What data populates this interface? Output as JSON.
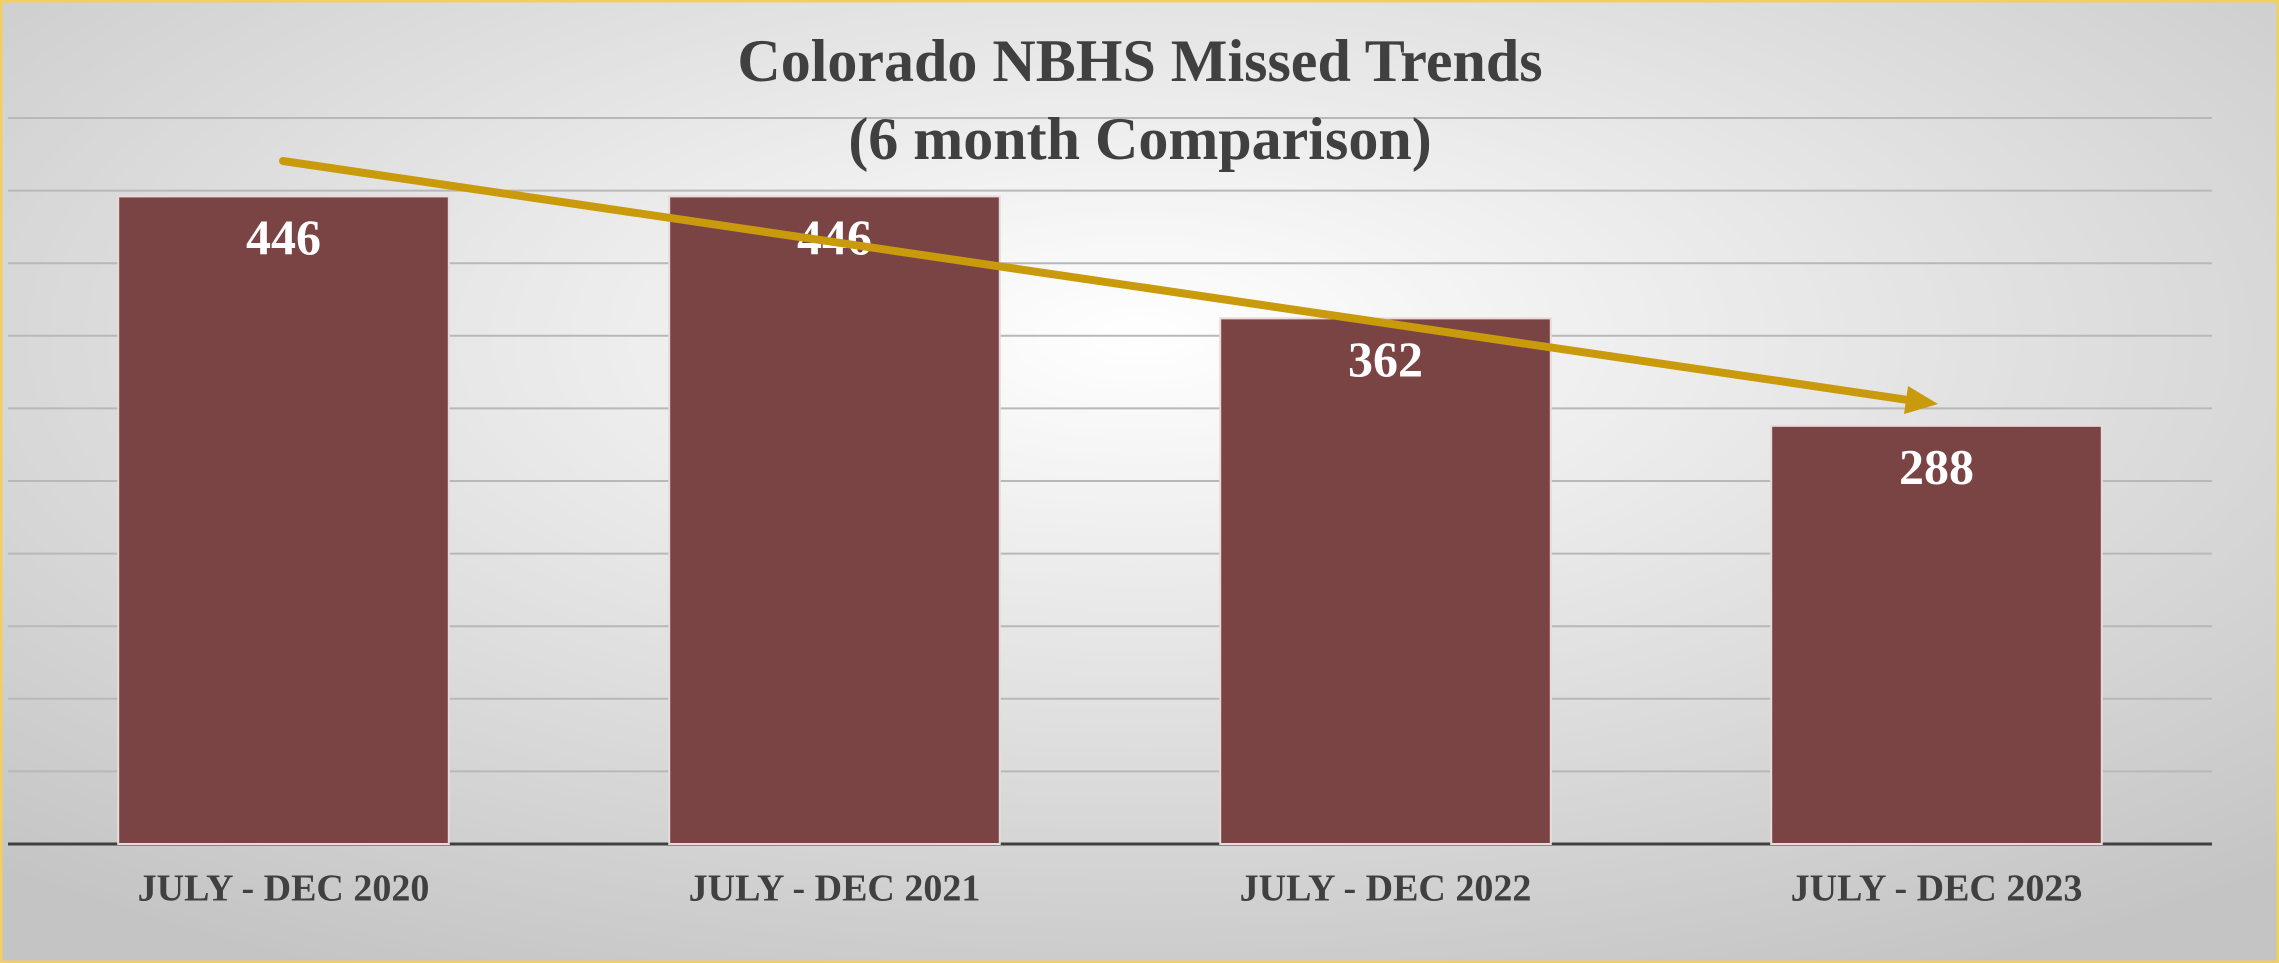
{
  "chart_data": {
    "type": "bar",
    "title": "Colorado NBHS Missed Trends",
    "subtitle": "(6 month Comparison)",
    "categories": [
      "JULY - DEC 2020",
      "JULY - DEC 2021",
      "JULY - DEC 2022",
      "JULY - DEC 2023"
    ],
    "values": [
      446,
      446,
      362,
      288
    ],
    "color": "#7b4444",
    "ylim": [
      0,
      500
    ],
    "yticks": [
      0,
      50,
      100,
      150,
      200,
      250,
      300,
      350,
      400,
      450,
      500
    ],
    "grid": true
  }
}
